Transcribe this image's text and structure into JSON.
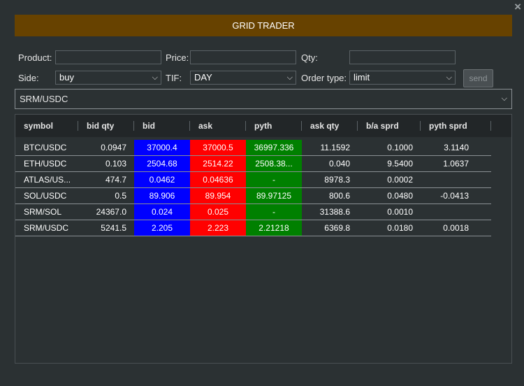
{
  "window": {
    "close_glyph": "×"
  },
  "header": {
    "title": "GRID TRADER"
  },
  "form": {
    "product_label": "Product:",
    "product_value": "",
    "price_label": "Price:",
    "price_value": "",
    "qty_label": "Qty:",
    "qty_value": "",
    "side_label": "Side:",
    "side_value": "buy",
    "tif_label": "TIF:",
    "tif_value": "DAY",
    "order_type_label": "Order type:",
    "order_type_value": "limit",
    "send_label": "send"
  },
  "product_select": {
    "value": "SRM/USDC"
  },
  "table": {
    "columns": [
      "symbol",
      "bid qty",
      "bid",
      "ask",
      "pyth",
      "ask qty",
      "b/a sprd",
      "pyth sprd"
    ],
    "rows": [
      {
        "symbol": "BTC/USDC",
        "bid_qty": "0.0947",
        "bid": "37000.4",
        "ask": "37000.5",
        "pyth": "36997.336",
        "ask_qty": "11.1592",
        "ba_sprd": "0.1000",
        "pyth_sprd": "3.1140"
      },
      {
        "symbol": "ETH/USDC",
        "bid_qty": "0.103",
        "bid": "2504.68",
        "ask": "2514.22",
        "pyth": "2508.38...",
        "ask_qty": "0.040",
        "ba_sprd": "9.5400",
        "pyth_sprd": "1.0637"
      },
      {
        "symbol": "ATLAS/US...",
        "bid_qty": "474.7",
        "bid": "0.0462",
        "ask": "0.04636",
        "pyth": "-",
        "ask_qty": "8978.3",
        "ba_sprd": "0.0002",
        "pyth_sprd": ""
      },
      {
        "symbol": "SOL/USDC",
        "bid_qty": "0.5",
        "bid": "89.906",
        "ask": "89.954",
        "pyth": "89.97125",
        "ask_qty": "800.6",
        "ba_sprd": "0.0480",
        "pyth_sprd": "-0.0413"
      },
      {
        "symbol": "SRM/SOL",
        "bid_qty": "24367.0",
        "bid": "0.024",
        "ask": "0.025",
        "pyth": "-",
        "ask_qty": "31388.6",
        "ba_sprd": "0.0010",
        "pyth_sprd": ""
      },
      {
        "symbol": "SRM/USDC",
        "bid_qty": "5241.5",
        "bid": "2.205",
        "ask": "2.223",
        "pyth": "2.21218",
        "ask_qty": "6369.8",
        "ba_sprd": "0.0180",
        "pyth_sprd": "0.0018"
      }
    ]
  },
  "colors": {
    "banner": "#674200",
    "bid": "#0000ff",
    "ask": "#ff0000",
    "pyth": "#008000",
    "background": "#2b3133"
  },
  "icons": {
    "close": "close-icon",
    "dropdown": "chevron-down-icon"
  }
}
